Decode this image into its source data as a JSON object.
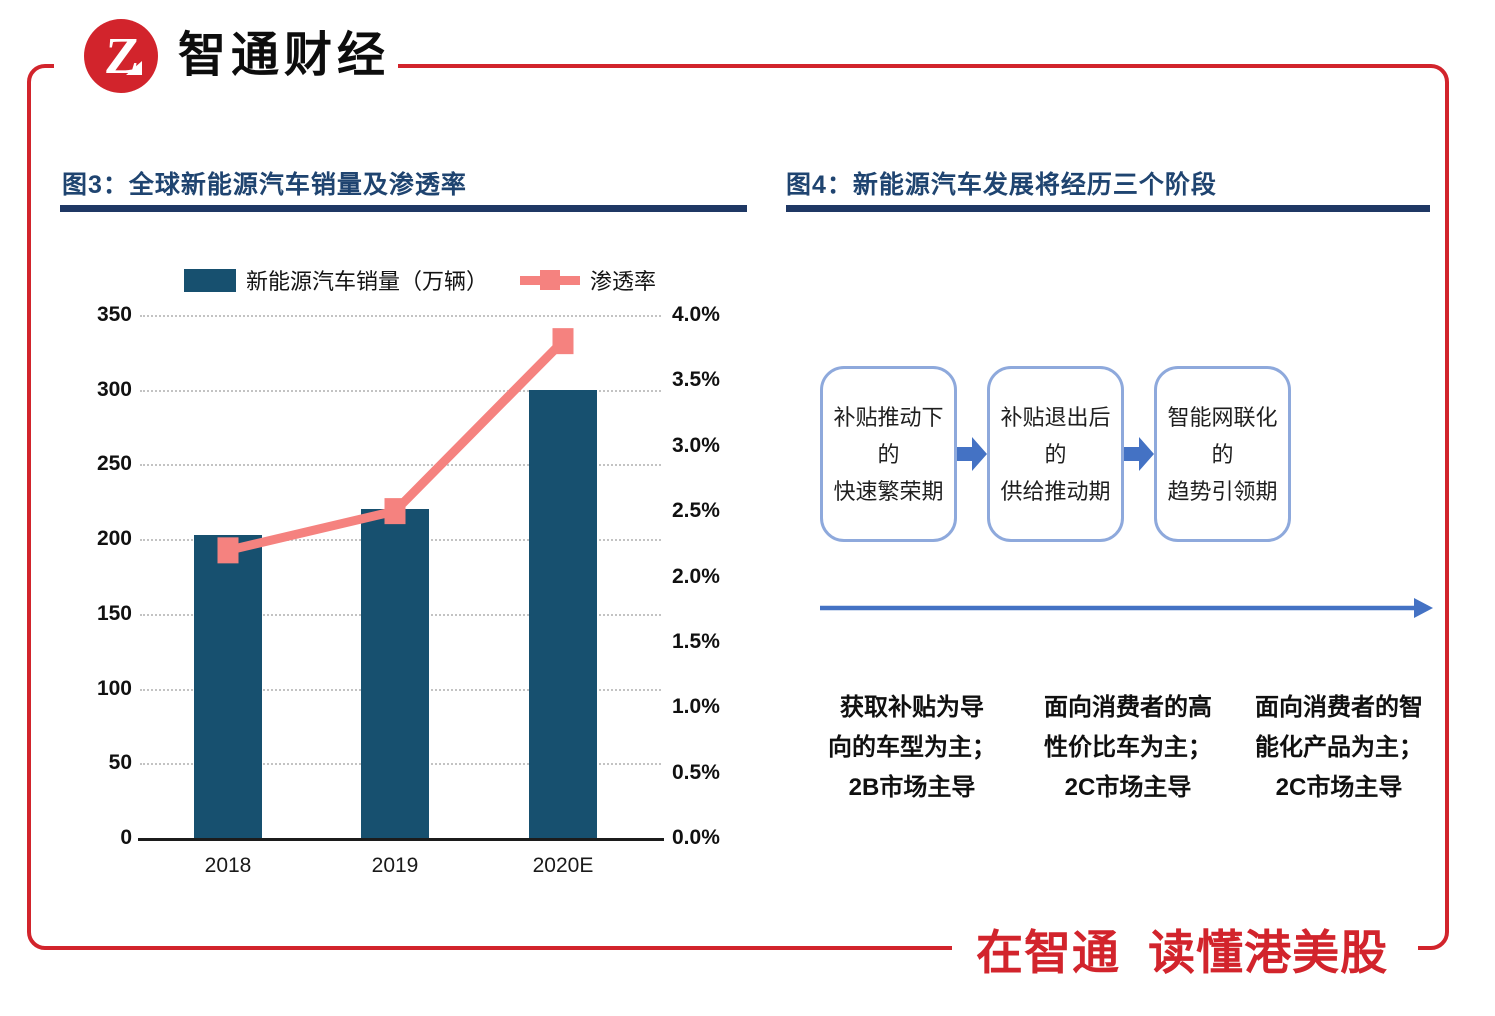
{
  "brand": {
    "name": "智通财经",
    "monogram": "Z",
    "red": "#D2242C"
  },
  "footer": {
    "slogan": "在智通  读懂港美股"
  },
  "figure3": {
    "title": "图3：全球新能源汽车销量及渗透率"
  },
  "figure4": {
    "title": "图4：新能源汽车发展将经历三个阶段",
    "box_border_color": "#8EA9DC",
    "arrow_color": "#4472C4",
    "stages": [
      {
        "phase": "补贴推动下的\n快速繁荣期",
        "note": "获取补贴为导\n向的车型为主；\n2B市场主导"
      },
      {
        "phase": "补贴退出后的\n供给推动期",
        "note": "面向消费者的高\n性价比车为主；\n2C市场主导"
      },
      {
        "phase": "智能网联化的\n趋势引领期",
        "note": "面向消费者的智\n能化产品为主；\n2C市场主导"
      }
    ]
  },
  "chart_data": {
    "type": "bar+line",
    "title": "全球新能源汽车销量及渗透率",
    "categories": [
      "2018",
      "2019",
      "2020E"
    ],
    "series": [
      {
        "name": "新能源汽车销量（万辆）",
        "kind": "bar",
        "axis": "left",
        "values": [
          203,
          220,
          300
        ],
        "color": "#17506F"
      },
      {
        "name": "渗透率",
        "kind": "line",
        "axis": "right",
        "values": [
          2.2,
          2.5,
          3.8
        ],
        "unit": "%",
        "color": "#F5827F"
      }
    ],
    "left_axis": {
      "min": 0,
      "max": 350,
      "step": 50,
      "ticks": [
        "350",
        "300",
        "250",
        "200",
        "150",
        "100",
        "50",
        "0"
      ]
    },
    "right_axis": {
      "min": 0,
      "max": 4,
      "step": 0.5,
      "ticks": [
        "4.0%",
        "3.5%",
        "3.0%",
        "2.5%",
        "2.0%",
        "1.5%",
        "1.0%",
        "0.5%",
        "0.0%"
      ]
    },
    "grid": "horizontal-dotted",
    "legend_position": "top"
  }
}
